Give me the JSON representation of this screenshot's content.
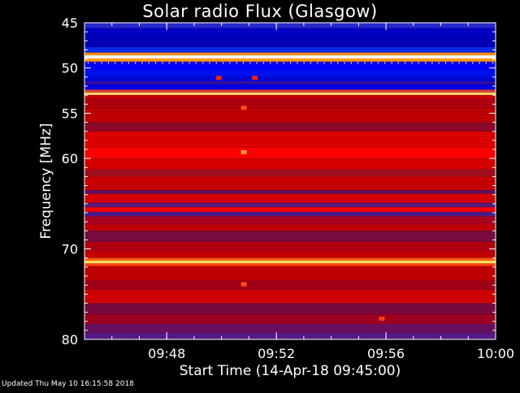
{
  "chart_data": {
    "type": "heatmap",
    "title": "Solar radio Flux (Glasgow)",
    "xlabel": "Start Time (14-Apr-18 09:45:00)",
    "ylabel": "Frequency [MHz]",
    "x_range": [
      "09:45:00",
      "10:00:00"
    ],
    "y_range_mhz": [
      45,
      80
    ],
    "y_axis_inverted": true,
    "x_ticks": [
      "09:48",
      "09:52",
      "09:56",
      "10:00"
    ],
    "y_ticks": [
      45,
      50,
      55,
      60,
      70,
      80
    ],
    "colormap": [
      "#000080",
      "#0000ff",
      "#6a1a8a",
      "#cc0000",
      "#ff0000",
      "#ffd040",
      "#ffffff"
    ],
    "bands": [
      {
        "f0": 45.0,
        "f1": 45.6,
        "color": "#2a2ad0"
      },
      {
        "f0": 45.6,
        "f1": 46.6,
        "color": "#0000c8"
      },
      {
        "f0": 46.6,
        "f1": 47.7,
        "color": "#0000b8"
      },
      {
        "f0": 47.7,
        "f1": 48.3,
        "color": "#0a2af0"
      },
      {
        "f0": 48.3,
        "f1": 48.6,
        "color": "#ff8c00"
      },
      {
        "f0": 48.6,
        "f1": 48.95,
        "color": "#ffffff"
      },
      {
        "f0": 48.95,
        "f1": 49.3,
        "color": "#ff9c10"
      },
      {
        "f0": 49.3,
        "f1": 50.2,
        "color": "#0000ff"
      },
      {
        "f0": 50.2,
        "f1": 51.0,
        "color": "#0010f0"
      },
      {
        "f0": 51.0,
        "f1": 51.5,
        "color": "#0008d8"
      },
      {
        "f0": 51.5,
        "f1": 51.8,
        "color": "#3a10a0"
      },
      {
        "f0": 51.8,
        "f1": 52.4,
        "color": "#0000e0"
      },
      {
        "f0": 52.4,
        "f1": 52.7,
        "color": "#e04030"
      },
      {
        "f0": 52.7,
        "f1": 53.0,
        "color": "#ffd070"
      },
      {
        "f0": 53.0,
        "f1": 53.3,
        "color": "#d00000"
      },
      {
        "f0": 53.3,
        "f1": 54.5,
        "color": "#b00010"
      },
      {
        "f0": 54.5,
        "f1": 56.0,
        "color": "#c00000"
      },
      {
        "f0": 56.0,
        "f1": 57.0,
        "color": "#8a0828"
      },
      {
        "f0": 57.0,
        "f1": 58.8,
        "color": "#dd0000"
      },
      {
        "f0": 58.8,
        "f1": 60.0,
        "color": "#ff0000"
      },
      {
        "f0": 60.0,
        "f1": 61.2,
        "color": "#d80000"
      },
      {
        "f0": 61.2,
        "f1": 62.0,
        "color": "#a01020"
      },
      {
        "f0": 62.0,
        "f1": 63.5,
        "color": "#c80000"
      },
      {
        "f0": 63.5,
        "f1": 63.9,
        "color": "#601060"
      },
      {
        "f0": 63.9,
        "f1": 64.9,
        "color": "#d80000"
      },
      {
        "f0": 64.9,
        "f1": 65.4,
        "color": "#5a1a7a"
      },
      {
        "f0": 65.4,
        "f1": 65.9,
        "color": "#ff0000"
      },
      {
        "f0": 65.9,
        "f1": 66.4,
        "color": "#4a1a8a"
      },
      {
        "f0": 66.4,
        "f1": 67.3,
        "color": "#aa0020"
      },
      {
        "f0": 67.3,
        "f1": 68.0,
        "color": "#c00000"
      },
      {
        "f0": 68.0,
        "f1": 69.2,
        "color": "#7a0a40"
      },
      {
        "f0": 69.2,
        "f1": 70.4,
        "color": "#b00010"
      },
      {
        "f0": 70.4,
        "f1": 71.0,
        "color": "#c80000"
      },
      {
        "f0": 71.0,
        "f1": 71.3,
        "color": "#ff6010"
      },
      {
        "f0": 71.3,
        "f1": 71.6,
        "color": "#ffe060"
      },
      {
        "f0": 71.6,
        "f1": 71.9,
        "color": "#ff4010"
      },
      {
        "f0": 71.9,
        "f1": 73.5,
        "color": "#c00000"
      },
      {
        "f0": 73.5,
        "f1": 74.5,
        "color": "#a00018"
      },
      {
        "f0": 74.5,
        "f1": 76.0,
        "color": "#d00000"
      },
      {
        "f0": 76.0,
        "f1": 77.2,
        "color": "#7a0a40"
      },
      {
        "f0": 77.2,
        "f1": 78.3,
        "color": "#a00020"
      },
      {
        "f0": 78.3,
        "f1": 79.3,
        "color": "#6a1060"
      },
      {
        "f0": 79.3,
        "f1": 80.0,
        "color": "#5a1a8a"
      }
    ],
    "spots": [
      {
        "t": "09:49:53",
        "f": 51.1,
        "color": "#ff2000"
      },
      {
        "t": "09:51:12",
        "f": 51.1,
        "color": "#ff2000"
      },
      {
        "t": "09:50:48",
        "f": 54.4,
        "color": "#ff5020"
      },
      {
        "t": "09:50:48",
        "f": 59.3,
        "color": "#ff9a40"
      },
      {
        "t": "09:50:48",
        "f": 73.9,
        "color": "#ff5010"
      },
      {
        "t": "09:55:50",
        "f": 77.7,
        "color": "#ff3a10"
      }
    ]
  },
  "footer": {
    "updated": "Updated Thu May 10 16:15:58 2018"
  }
}
